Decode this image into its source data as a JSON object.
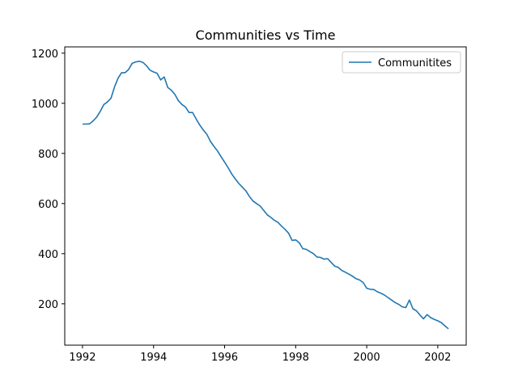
{
  "chart_data": {
    "type": "line",
    "title": "Communities vs Time",
    "xlabel": "",
    "ylabel": "",
    "xlim": [
      1991.5,
      2002.8
    ],
    "ylim": [
      35,
      1225
    ],
    "xticks": [
      1992,
      1994,
      1996,
      1998,
      2000,
      2002
    ],
    "yticks": [
      200,
      400,
      600,
      800,
      1000,
      1200
    ],
    "grid": false,
    "legend_position": "top-right",
    "series": [
      {
        "name": "Communitites",
        "color": "#1f77b4",
        "x": [
          1992.0,
          1992.1,
          1992.2,
          1992.3,
          1992.4,
          1992.5,
          1992.6,
          1992.7,
          1992.8,
          1992.9,
          1993.0,
          1993.1,
          1993.2,
          1993.3,
          1993.4,
          1993.5,
          1993.6,
          1993.7,
          1993.8,
          1993.9,
          1994.0,
          1994.1,
          1994.2,
          1994.3,
          1994.4,
          1994.5,
          1994.6,
          1994.7,
          1994.8,
          1994.9,
          1995.0,
          1995.1,
          1995.2,
          1995.3,
          1995.4,
          1995.5,
          1995.6,
          1995.7,
          1995.8,
          1995.9,
          1996.0,
          1996.1,
          1996.2,
          1996.3,
          1996.4,
          1996.5,
          1996.6,
          1996.7,
          1996.8,
          1996.9,
          1997.0,
          1997.1,
          1997.2,
          1997.3,
          1997.4,
          1997.5,
          1997.6,
          1997.7,
          1997.8,
          1997.9,
          1998.0,
          1998.1,
          1998.2,
          1998.3,
          1998.4,
          1998.5,
          1998.6,
          1998.7,
          1998.8,
          1998.9,
          1999.0,
          1999.1,
          1999.2,
          1999.3,
          1999.4,
          1999.5,
          1999.6,
          1999.7,
          1999.8,
          1999.9,
          2000.0,
          2000.1,
          2000.2,
          2000.3,
          2000.4,
          2000.5,
          2000.6,
          2000.7,
          2000.8,
          2000.9,
          2001.0,
          2001.1,
          2001.2,
          2001.3,
          2001.4,
          2001.5,
          2001.6,
          2001.7,
          2001.8,
          2001.9,
          2002.0,
          2002.1,
          2002.2,
          2002.3
        ],
        "values": [
          917,
          917,
          918,
          930,
          945,
          968,
          995,
          1005,
          1020,
          1065,
          1100,
          1122,
          1122,
          1135,
          1160,
          1165,
          1168,
          1163,
          1150,
          1132,
          1125,
          1120,
          1093,
          1105,
          1063,
          1052,
          1035,
          1010,
          995,
          985,
          963,
          963,
          937,
          913,
          893,
          876,
          848,
          828,
          810,
          787,
          765,
          743,
          718,
          698,
          680,
          665,
          650,
          628,
          610,
          600,
          590,
          573,
          555,
          545,
          533,
          525,
          510,
          497,
          482,
          453,
          455,
          444,
          420,
          417,
          408,
          400,
          387,
          385,
          378,
          380,
          365,
          350,
          345,
          333,
          326,
          318,
          310,
          300,
          295,
          285,
          262,
          258,
          257,
          248,
          242,
          235,
          225,
          215,
          205,
          198,
          188,
          185,
          215,
          180,
          172,
          155,
          140,
          157,
          145,
          138,
          132,
          125,
          112,
          100
        ]
      }
    ]
  }
}
